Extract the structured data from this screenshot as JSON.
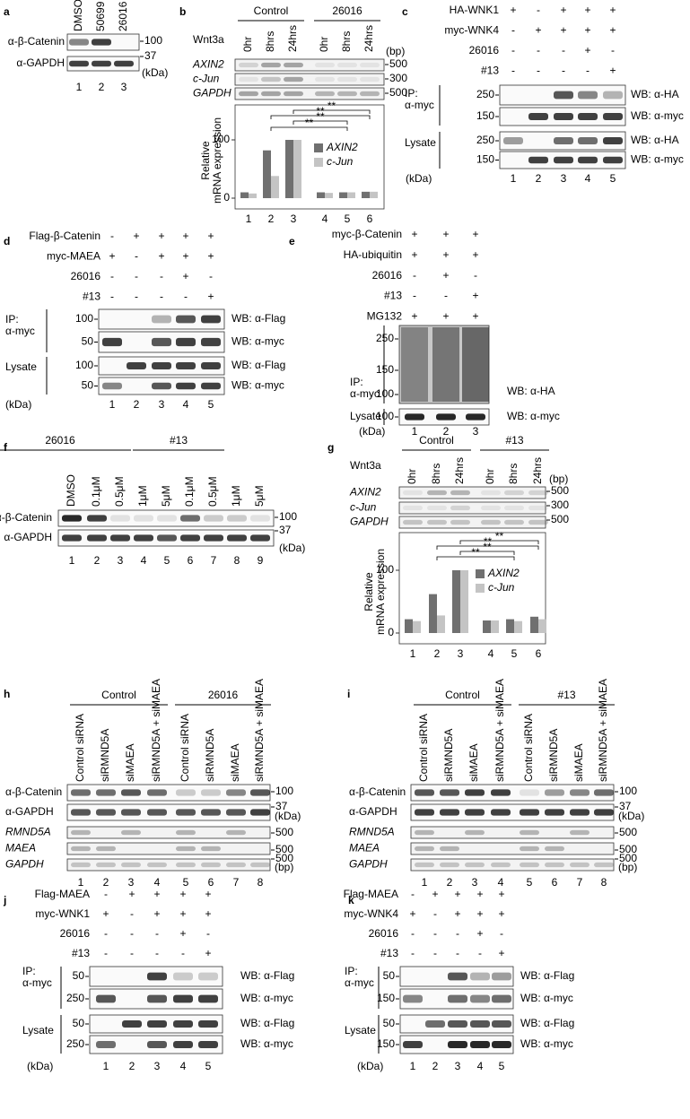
{
  "panels": {
    "a": {
      "letter": "a",
      "lanes": [
        "DMSO",
        "50699",
        "26016"
      ],
      "rows": [
        {
          "label": "α-β-Catenin",
          "markers": [
            "100"
          ]
        },
        {
          "label": "α-GAPDH",
          "markers": [
            "37"
          ]
        }
      ],
      "units": [
        "(kDa)"
      ],
      "lane_numbers": [
        "1",
        "2",
        "3"
      ]
    },
    "b": {
      "letter": "b",
      "groups": [
        "Control",
        "26016"
      ],
      "treatment": "Wnt3a",
      "lanes": [
        "0hr",
        "8hrs",
        "24hrs",
        "0hr",
        "8hrs",
        "24hrs"
      ],
      "units": [
        "(bp)"
      ],
      "rows": [
        {
          "label": "AXIN2",
          "markers": [
            "500"
          ]
        },
        {
          "label": "c-Jun",
          "markers": [
            "300"
          ]
        },
        {
          "label": "GAPDH",
          "markers": [
            "500"
          ]
        }
      ],
      "chart": {
        "type": "bar",
        "y_label": [
          "Relative",
          "mRNA expression"
        ],
        "categories": [
          "1",
          "2",
          "3",
          "4",
          "5",
          "6"
        ],
        "series": [
          {
            "name": "AXIN2",
            "color": "#707070",
            "values": [
              10,
              82,
              100,
              10,
              10,
              11
            ]
          },
          {
            "name": "c-Jun",
            "color": "#c4c4c4",
            "values": [
              8,
              38,
              100,
              9,
              10,
              11
            ]
          }
        ],
        "ylim": [
          0,
          160
        ],
        "yticks": [
          0,
          100
        ],
        "significance": [
          "**",
          "**",
          "**",
          "**"
        ]
      }
    },
    "c": {
      "letter": "c",
      "conditions": [
        {
          "label": "HA-WNK1",
          "signs": [
            "+",
            "-",
            "+",
            "+",
            "+"
          ]
        },
        {
          "label": "myc-WNK4",
          "signs": [
            "-",
            "+",
            "+",
            "+",
            "+"
          ]
        },
        {
          "label": "26016",
          "signs": [
            "-",
            "-",
            "-",
            "+",
            "-"
          ]
        },
        {
          "label": "#13",
          "signs": [
            "-",
            "-",
            "-",
            "-",
            "+"
          ]
        }
      ],
      "sections": [
        {
          "label": [
            "IP:",
            "α-myc"
          ],
          "rows": [
            {
              "markers": [
                "250"
              ],
              "wb": "WB: α-HA"
            },
            {
              "markers": [
                "150"
              ],
              "wb": "WB: α-myc"
            }
          ]
        },
        {
          "label": [
            "Lysate"
          ],
          "rows": [
            {
              "markers": [
                "250"
              ],
              "wb": "WB: α-HA"
            },
            {
              "markers": [
                "150"
              ],
              "wb": "WB: α-myc"
            }
          ]
        }
      ],
      "units": [
        "(kDa)"
      ],
      "lane_numbers": [
        "1",
        "2",
        "3",
        "4",
        "5"
      ]
    },
    "d": {
      "letter": "d",
      "conditions": [
        {
          "label": "Flag-β-Catenin",
          "signs": [
            "-",
            "+",
            "+",
            "+",
            "+"
          ]
        },
        {
          "label": "myc-MAEA",
          "signs": [
            "+",
            "-",
            "+",
            "+",
            "+"
          ]
        },
        {
          "label": "26016",
          "signs": [
            "-",
            "-",
            "-",
            "+",
            "-"
          ]
        },
        {
          "label": "#13",
          "signs": [
            "-",
            "-",
            "-",
            "-",
            "+"
          ]
        }
      ],
      "sections": [
        {
          "label": [
            "IP:",
            "α-myc"
          ],
          "rows": [
            {
              "markers": [
                "100"
              ],
              "wb": "WB: α-Flag"
            },
            {
              "markers": [
                "50"
              ],
              "wb": "WB: α-myc"
            }
          ]
        },
        {
          "label": [
            "Lysate"
          ],
          "rows": [
            {
              "markers": [
                "100"
              ],
              "wb": "WB: α-Flag"
            },
            {
              "markers": [
                "50"
              ],
              "wb": "WB: α-myc"
            }
          ]
        }
      ],
      "units": [
        "(kDa)"
      ],
      "lane_numbers": [
        "1",
        "2",
        "3",
        "4",
        "5"
      ]
    },
    "e": {
      "letter": "e",
      "conditions": [
        {
          "label": "myc-β-Catenin",
          "signs": [
            "+",
            "+",
            "+"
          ]
        },
        {
          "label": "HA-ubiquitin",
          "signs": [
            "+",
            "+",
            "+"
          ]
        },
        {
          "label": "26016",
          "signs": [
            "-",
            "+",
            "-"
          ]
        },
        {
          "label": "#13",
          "signs": [
            "-",
            "-",
            "+"
          ]
        },
        {
          "label": "MG132",
          "signs": [
            "+",
            "+",
            "+"
          ]
        }
      ],
      "sections": [
        {
          "label": [
            "IP:",
            "α-myc"
          ],
          "rows": [
            {
              "markers": [
                "250",
                "150",
                "100"
              ],
              "wb": "WB: α-HA"
            }
          ]
        },
        {
          "label": [
            "Lysate"
          ],
          "rows": [
            {
              "markers": [
                "100"
              ],
              "wb": "WB: α-myc"
            }
          ]
        }
      ],
      "units": [
        "(kDa)"
      ],
      "lane_numbers": [
        "1",
        "2",
        "3"
      ]
    },
    "f": {
      "letter": "f",
      "groups": [
        "26016",
        "#13"
      ],
      "lanes": [
        "DMSO",
        "0.1μM",
        "0.5μM",
        "1μM",
        "5μM",
        "0.1μM",
        "0.5μM",
        "1μM",
        "5μM"
      ],
      "rows": [
        {
          "label": "α-β-Catenin",
          "markers": [
            "100"
          ]
        },
        {
          "label": "α-GAPDH",
          "markers": [
            "37"
          ]
        }
      ],
      "units": [
        "(kDa)"
      ],
      "lane_numbers": [
        "1",
        "2",
        "3",
        "4",
        "5",
        "6",
        "7",
        "8",
        "9"
      ]
    },
    "g": {
      "letter": "g",
      "groups": [
        "Control",
        "#13"
      ],
      "treatment": "Wnt3a",
      "lanes": [
        "0hr",
        "8hrs",
        "24hrs",
        "0hr",
        "8hrs",
        "24hrs"
      ],
      "units": [
        "(bp)"
      ],
      "rows": [
        {
          "label": "AXIN2",
          "markers": [
            "500"
          ]
        },
        {
          "label": "c-Jun",
          "markers": [
            "300"
          ]
        },
        {
          "label": "GAPDH",
          "markers": [
            "500"
          ]
        }
      ],
      "chart": {
        "type": "bar",
        "y_label": [
          "Relative",
          "mRNA expression"
        ],
        "categories": [
          "1",
          "2",
          "3",
          "4",
          "5",
          "6"
        ],
        "series": [
          {
            "name": "AXIN2",
            "color": "#707070",
            "values": [
              22,
              62,
              100,
              20,
              22,
              26
            ]
          },
          {
            "name": "c-Jun",
            "color": "#c4c4c4",
            "values": [
              19,
              28,
              100,
              20,
              19,
              22
            ]
          }
        ],
        "ylim": [
          0,
          160
        ],
        "yticks": [
          0,
          100
        ],
        "significance": [
          "**",
          "**",
          "**",
          "**"
        ]
      }
    },
    "h": {
      "letter": "h",
      "groups": [
        "Control",
        "26016"
      ],
      "lanes": [
        "Control siRNA",
        "siRMND5A",
        "siMAEA",
        "siRMND5A + siMAEA",
        "Control siRNA",
        "siRMND5A",
        "siMAEA",
        "siRMND5A + siMAEA"
      ],
      "rows": [
        {
          "label": "α-β-Catenin",
          "markers": [
            "100"
          ]
        },
        {
          "label": "α-GAPDH",
          "markers": [
            "37"
          ]
        },
        {
          "label": "RMND5A",
          "markers": [
            "500"
          ]
        },
        {
          "label": "MAEA",
          "markers": [
            "500"
          ]
        },
        {
          "label": "GAPDH",
          "markers": [
            "500"
          ]
        }
      ],
      "units": [
        "(kDa)",
        "(bp)"
      ],
      "lane_numbers": [
        "1",
        "2",
        "3",
        "4",
        "5",
        "6",
        "7",
        "8"
      ]
    },
    "i": {
      "letter": "i",
      "groups": [
        "Control",
        "#13"
      ],
      "lanes": [
        "Control siRNA",
        "siRMND5A",
        "siMAEA",
        "siRMND5A + siMAEA",
        "Control siRNA",
        "siRMND5A",
        "siMAEA",
        "siRMND5A + siMAEA"
      ],
      "rows": [
        {
          "label": "α-β-Catenin",
          "markers": [
            "100"
          ]
        },
        {
          "label": "α-GAPDH",
          "markers": [
            "37"
          ]
        },
        {
          "label": "RMND5A",
          "markers": [
            "500"
          ]
        },
        {
          "label": "MAEA",
          "markers": [
            "500"
          ]
        },
        {
          "label": "GAPDH",
          "markers": [
            "500"
          ]
        }
      ],
      "units": [
        "(kDa)",
        "(bp)"
      ],
      "lane_numbers": [
        "1",
        "2",
        "3",
        "4",
        "5",
        "6",
        "7",
        "8"
      ]
    },
    "j": {
      "letter": "j",
      "conditions": [
        {
          "label": "Flag-MAEA",
          "signs": [
            "-",
            "+",
            "+",
            "+",
            "+"
          ]
        },
        {
          "label": "myc-WNK1",
          "signs": [
            "+",
            "-",
            "+",
            "+",
            "+"
          ]
        },
        {
          "label": "26016",
          "signs": [
            "-",
            "-",
            "-",
            "+",
            "-"
          ]
        },
        {
          "label": "#13",
          "signs": [
            "-",
            "-",
            "-",
            "-",
            "+"
          ]
        }
      ],
      "sections": [
        {
          "label": [
            "IP:",
            "α-myc"
          ],
          "rows": [
            {
              "markers": [
                "50"
              ],
              "wb": "WB: α-Flag"
            },
            {
              "markers": [
                "250"
              ],
              "wb": "WB: α-myc"
            }
          ]
        },
        {
          "label": [
            "Lysate"
          ],
          "rows": [
            {
              "markers": [
                "50"
              ],
              "wb": "WB: α-Flag"
            },
            {
              "markers": [
                "250"
              ],
              "wb": "WB: α-myc"
            }
          ]
        }
      ],
      "units": [
        "(kDa)"
      ],
      "lane_numbers": [
        "1",
        "2",
        "3",
        "4",
        "5"
      ]
    },
    "k": {
      "letter": "k",
      "conditions": [
        {
          "label": "Flag-MAEA",
          "signs": [
            "-",
            "+",
            "+",
            "+",
            "+"
          ]
        },
        {
          "label": "myc-WNK4",
          "signs": [
            "+",
            "-",
            "+",
            "+",
            "+"
          ]
        },
        {
          "label": "26016",
          "signs": [
            "-",
            "-",
            "-",
            "+",
            "-"
          ]
        },
        {
          "label": "#13",
          "signs": [
            "-",
            "-",
            "-",
            "-",
            "+"
          ]
        }
      ],
      "sections": [
        {
          "label": [
            "IP:",
            "α-myc"
          ],
          "rows": [
            {
              "markers": [
                "50"
              ],
              "wb": "WB: α-Flag"
            },
            {
              "markers": [
                "150"
              ],
              "wb": "WB: α-myc"
            }
          ]
        },
        {
          "label": [
            "Lysate"
          ],
          "rows": [
            {
              "markers": [
                "50"
              ],
              "wb": "WB: α-Flag"
            },
            {
              "markers": [
                "150"
              ],
              "wb": "WB: α-myc"
            }
          ]
        }
      ],
      "units": [
        "(kDa)"
      ],
      "lane_numbers": [
        "1",
        "2",
        "3",
        "4",
        "5"
      ]
    }
  }
}
